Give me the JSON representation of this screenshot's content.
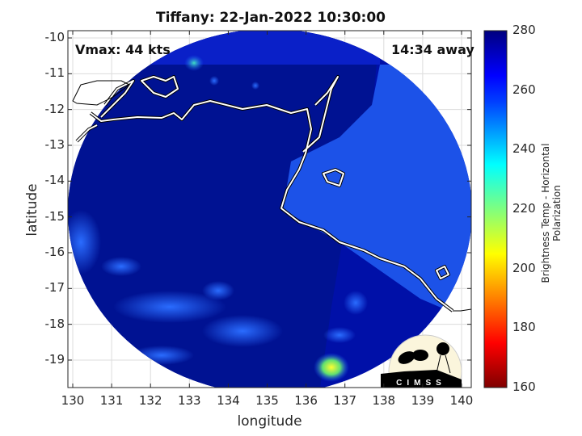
{
  "title": "Tiffany: 22-Jan-2022 10:30:00",
  "annotations": {
    "vmax": "Vmax: 44 kts",
    "distance": "14:34 away"
  },
  "axes": {
    "xlabel": "longitude",
    "ylabel": "latitude",
    "xticks": [
      "130",
      "131",
      "132",
      "133",
      "134",
      "135",
      "136",
      "137",
      "138",
      "139",
      "140"
    ],
    "yticks": [
      "-10",
      "-11",
      "-12",
      "-13",
      "-14",
      "-15",
      "-16",
      "-17",
      "-18",
      "-19"
    ],
    "xlim": [
      129.9,
      140.3
    ],
    "ylim": [
      -19.8,
      -9.8
    ],
    "grid": true
  },
  "colorbar": {
    "label": "Brightness Temp - Horizontal Polarization",
    "ticks": [
      "280",
      "260",
      "240",
      "220",
      "200",
      "180",
      "160"
    ],
    "range": [
      160,
      280
    ],
    "colormap": "jet"
  },
  "logo": {
    "text": "CIMSS"
  },
  "colors": {
    "background_tb": "#00109a",
    "coast": "#ffffff",
    "warm": "#00007f",
    "cold": "#7f0000"
  }
}
